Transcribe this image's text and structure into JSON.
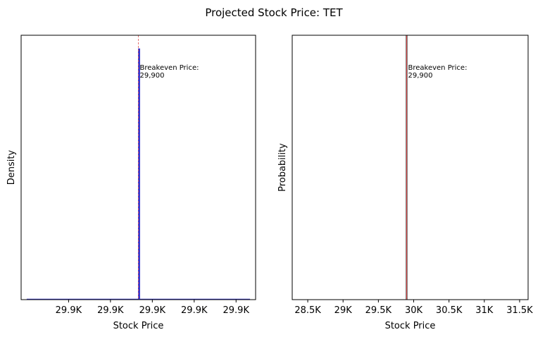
{
  "figure": {
    "title": "Projected Stock Price: TET"
  },
  "chart_data": [
    {
      "type": "bar",
      "title": "",
      "xlabel": "Stock Price",
      "ylabel": "Density",
      "x_range": [
        29899.16,
        29900.84
      ],
      "x_ticks": [
        {
          "value": 29899.5,
          "label": "29.9K"
        },
        {
          "value": 29899.8,
          "label": "29.9K"
        },
        {
          "value": 29900.1,
          "label": "29.9K"
        },
        {
          "value": 29900.4,
          "label": "29.9K"
        },
        {
          "value": 29900.7,
          "label": "29.9K"
        }
      ],
      "y_ticks_shown": false,
      "grid": false,
      "histogram": {
        "bin_start": 29900.0,
        "bin_end": 29900.015,
        "relative_height": 0.95,
        "color": "#3a3ad0"
      },
      "baseline": {
        "x_start": 29899.2,
        "x_end": 29900.8,
        "color": "#3a3ad0"
      },
      "breakeven_line": {
        "x": 29900,
        "color": "#e05050",
        "style": "dashed"
      },
      "annotation": {
        "lines": [
          "Breakeven Price:",
          "29,900"
        ],
        "x": 29900,
        "y_fraction": 0.87
      }
    },
    {
      "type": "line",
      "title": "",
      "xlabel": "Stock Price",
      "ylabel": "Probability",
      "x_range": [
        28280,
        31620
      ],
      "x_ticks": [
        {
          "value": 28500,
          "label": "28.5K"
        },
        {
          "value": 29000,
          "label": "29K"
        },
        {
          "value": 29500,
          "label": "29.5K"
        },
        {
          "value": 30000,
          "label": "30K"
        },
        {
          "value": 30500,
          "label": "30.5K"
        },
        {
          "value": 31000,
          "label": "31K"
        },
        {
          "value": 31500,
          "label": "31.5K"
        }
      ],
      "y_ticks_shown": false,
      "grid": false,
      "cdf_step_x": 29900,
      "cdf_color": "#000000",
      "breakeven_line": {
        "x": 29900,
        "color": "#e05050",
        "style": "solid"
      },
      "annotation": {
        "lines": [
          "Breakeven Price:",
          "29,900"
        ],
        "x": 29900,
        "y_fraction": 0.87
      }
    }
  ]
}
